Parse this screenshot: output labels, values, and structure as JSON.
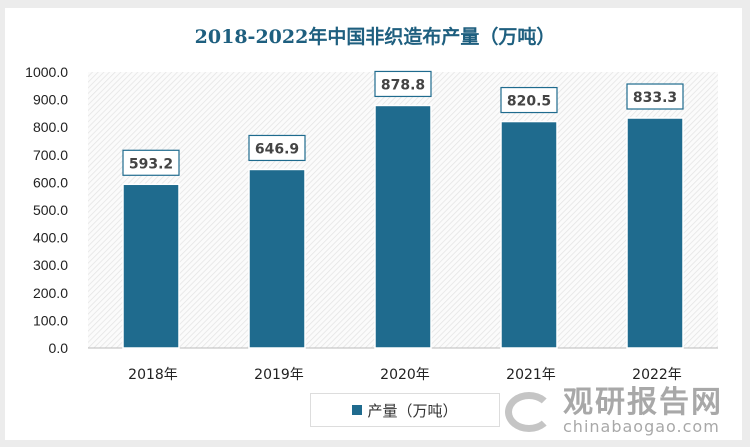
{
  "chart_data": {
    "type": "bar",
    "title": "2018-2022年中国非织造布产量（万吨）",
    "categories": [
      "2018年",
      "2019年",
      "2020年",
      "2021年",
      "2022年"
    ],
    "series": [
      {
        "name": "产量（万吨）",
        "values": [
          593.2,
          646.9,
          878.8,
          820.5,
          833.3
        ]
      }
    ],
    "data_labels": [
      "593.2",
      "646.9",
      "878.8",
      "820.5",
      "833.3"
    ],
    "ylim": [
      0,
      1000
    ],
    "yticks": [
      "0.0",
      "100.0",
      "200.0",
      "300.0",
      "400.0",
      "500.0",
      "600.0",
      "700.0",
      "800.0",
      "900.0",
      "1000.0"
    ],
    "legend_position": "bottom",
    "grid": false,
    "bar_color": "#1f6b8e"
  },
  "watermark": {
    "cn": "观研报告网",
    "en": "chinabaogao.com"
  }
}
